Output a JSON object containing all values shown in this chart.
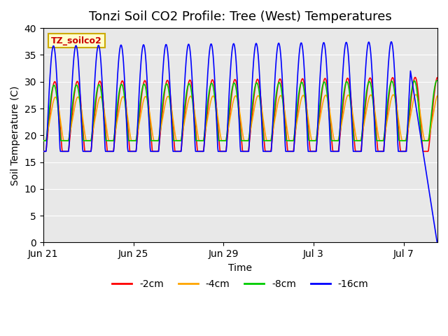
{
  "title": "Tonzi Soil CO2 Profile: Tree (West) Temperatures",
  "xlabel": "Time",
  "ylabel": "Soil Temperature (C)",
  "annotation": "TZ_soilco2",
  "ylim": [
    0,
    40
  ],
  "xlim": [
    0,
    17.5
  ],
  "x_ticks_labels": [
    "Jun 21",
    "Jun 25",
    "Jun 29",
    "Jul 3",
    "Jul 7"
  ],
  "x_ticks_pos": [
    0,
    4,
    8,
    12,
    16
  ],
  "legend_labels": [
    "-2cm",
    "-4cm",
    "-8cm",
    "-16cm"
  ],
  "legend_colors": [
    "#ff0000",
    "#ffa500",
    "#00cc00",
    "#0000ff"
  ],
  "background_color": "#e8e8e8",
  "figure_bg": "#ffffff",
  "title_fontsize": 13,
  "axis_fontsize": 10
}
